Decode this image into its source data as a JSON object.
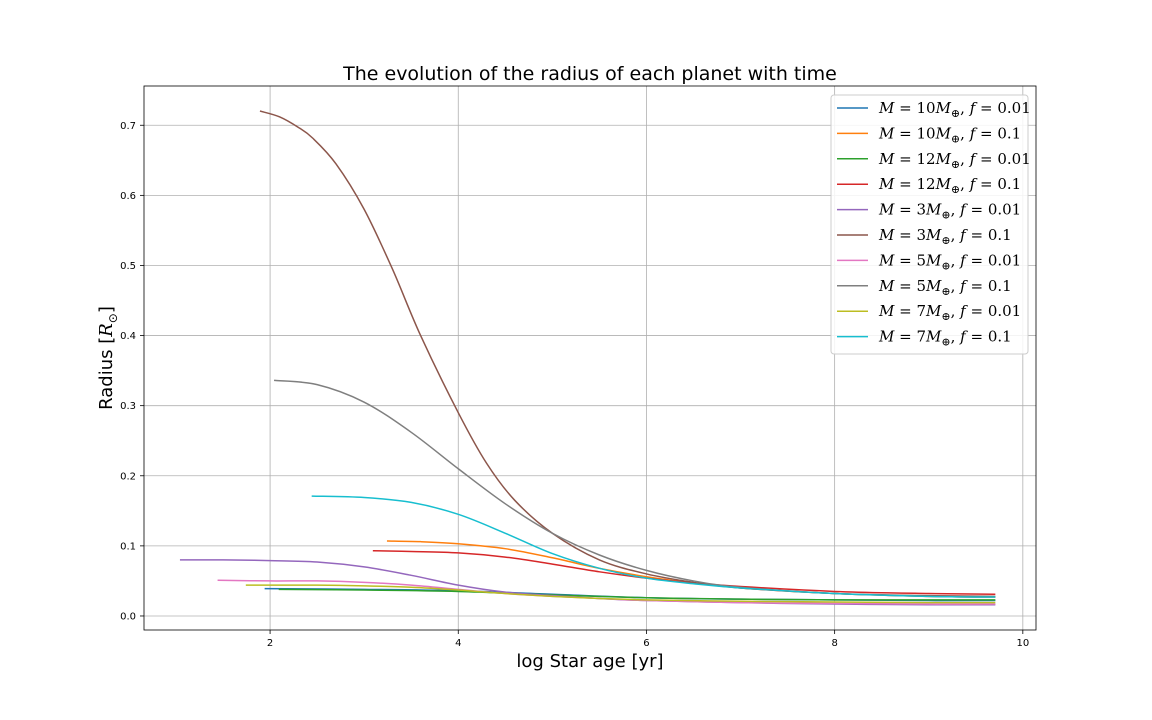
{
  "chart_data": {
    "type": "line",
    "title": "The evolution of the radius of each planet with time",
    "xlabel": "log Star age [yr]",
    "ylabel": "Radius [R_⊙]",
    "xlim": [
      0.66,
      10.14
    ],
    "ylim": [
      -0.02,
      0.756
    ],
    "xticks": [
      2,
      4,
      6,
      8,
      10
    ],
    "xtick_labels": [
      "2",
      "4",
      "6",
      "8",
      "10"
    ],
    "yticks": [
      0.0,
      0.1,
      0.2,
      0.3,
      0.4,
      0.5,
      0.6,
      0.7
    ],
    "ytick_labels": [
      "0.0",
      "0.1",
      "0.2",
      "0.3",
      "0.4",
      "0.5",
      "0.6",
      "0.7"
    ],
    "grid": true,
    "legend_position": "top-right",
    "series": [
      {
        "name": "M = 10M⊕, f = 0.01",
        "label": {
          "m": "10",
          "f": "0.01"
        },
        "color": "#1f77b4",
        "x": [
          1.95,
          3,
          4,
          5,
          6,
          7,
          8,
          9,
          9.7
        ],
        "y": [
          0.039,
          0.038,
          0.036,
          0.031,
          0.026,
          0.024,
          0.023,
          0.022,
          0.022
        ]
      },
      {
        "name": "M = 10M⊕, f = 0.1",
        "label": {
          "m": "10",
          "f": "0.1"
        },
        "color": "#ff7f0e",
        "x": [
          3.25,
          3.6,
          4,
          4.5,
          5,
          5.5,
          6,
          6.5,
          7,
          8,
          9,
          9.7
        ],
        "y": [
          0.107,
          0.106,
          0.103,
          0.096,
          0.083,
          0.068,
          0.056,
          0.047,
          0.04,
          0.032,
          0.028,
          0.027
        ]
      },
      {
        "name": "M = 12M⊕, f = 0.01",
        "label": {
          "m": "12",
          "f": "0.01"
        },
        "color": "#2ca02c",
        "x": [
          2.1,
          3,
          4,
          5,
          6,
          7,
          8,
          9,
          9.7
        ],
        "y": [
          0.038,
          0.037,
          0.035,
          0.03,
          0.026,
          0.024,
          0.023,
          0.023,
          0.023
        ]
      },
      {
        "name": "M = 12M⊕, f = 0.1",
        "label": {
          "m": "12",
          "f": "0.1"
        },
        "color": "#d62728",
        "x": [
          3.1,
          3.5,
          4,
          4.5,
          5,
          5.5,
          6,
          6.5,
          7,
          8,
          9,
          9.7
        ],
        "y": [
          0.093,
          0.092,
          0.09,
          0.084,
          0.074,
          0.063,
          0.054,
          0.047,
          0.042,
          0.035,
          0.032,
          0.031
        ]
      },
      {
        "name": "M = 3M⊕, f = 0.01",
        "label": {
          "m": "3",
          "f": "0.01"
        },
        "color": "#9467bd",
        "x": [
          1.05,
          1.5,
          2,
          2.5,
          3,
          3.5,
          4,
          4.5,
          5,
          5.5,
          6,
          7,
          8,
          9,
          9.7
        ],
        "y": [
          0.08,
          0.08,
          0.079,
          0.077,
          0.07,
          0.058,
          0.044,
          0.034,
          0.029,
          0.025,
          0.022,
          0.019,
          0.017,
          0.016,
          0.016
        ]
      },
      {
        "name": "M = 3M⊕, f = 0.1",
        "label": {
          "m": "3",
          "f": "0.1"
        },
        "color": "#8c564b",
        "x": [
          1.9,
          2.1,
          2.3,
          2.45,
          2.7,
          3.0,
          3.3,
          3.6,
          4.0,
          4.3,
          4.6,
          5.0,
          5.5,
          6.0,
          6.5,
          7.0,
          8.0,
          9.0,
          9.7
        ],
        "y": [
          0.72,
          0.712,
          0.697,
          0.682,
          0.645,
          0.58,
          0.495,
          0.4,
          0.29,
          0.218,
          0.165,
          0.118,
          0.08,
          0.06,
          0.048,
          0.04,
          0.032,
          0.029,
          0.028
        ]
      },
      {
        "name": "M = 5M⊕, f = 0.01",
        "label": {
          "m": "5",
          "f": "0.01"
        },
        "color": "#e377c2",
        "x": [
          1.45,
          2,
          2.5,
          3,
          3.5,
          4,
          4.5,
          5,
          5.5,
          6,
          7,
          8,
          9,
          9.7
        ],
        "y": [
          0.051,
          0.05,
          0.05,
          0.048,
          0.044,
          0.038,
          0.032,
          0.028,
          0.025,
          0.022,
          0.019,
          0.018,
          0.017,
          0.017
        ]
      },
      {
        "name": "M = 5M⊕, f = 0.1",
        "label": {
          "m": "5",
          "f": "0.1"
        },
        "color": "#7f7f7f",
        "x": [
          2.05,
          2.5,
          3.0,
          3.5,
          4.0,
          4.5,
          5.0,
          5.5,
          6.0,
          6.5,
          7.0,
          8.0,
          9.0,
          9.7
        ],
        "y": [
          0.336,
          0.33,
          0.305,
          0.262,
          0.21,
          0.16,
          0.118,
          0.087,
          0.065,
          0.05,
          0.041,
          0.032,
          0.028,
          0.027
        ]
      },
      {
        "name": "M = 7M⊕, f = 0.01",
        "label": {
          "m": "7",
          "f": "0.01"
        },
        "color": "#bcbd22",
        "x": [
          1.75,
          2.5,
          3,
          3.5,
          4,
          4.5,
          5,
          5.5,
          6,
          7,
          8,
          9,
          9.7
        ],
        "y": [
          0.044,
          0.044,
          0.043,
          0.041,
          0.037,
          0.032,
          0.028,
          0.025,
          0.023,
          0.021,
          0.02,
          0.019,
          0.019
        ]
      },
      {
        "name": "M = 7M⊕, f = 0.1",
        "label": {
          "m": "7",
          "f": "0.1"
        },
        "color": "#17becf",
        "x": [
          2.45,
          3.0,
          3.5,
          4.0,
          4.5,
          5.0,
          5.5,
          6.0,
          6.5,
          7.0,
          8.0,
          9.0,
          9.7
        ],
        "y": [
          0.171,
          0.169,
          0.162,
          0.145,
          0.118,
          0.089,
          0.068,
          0.054,
          0.046,
          0.04,
          0.032,
          0.028,
          0.027
        ]
      }
    ]
  }
}
